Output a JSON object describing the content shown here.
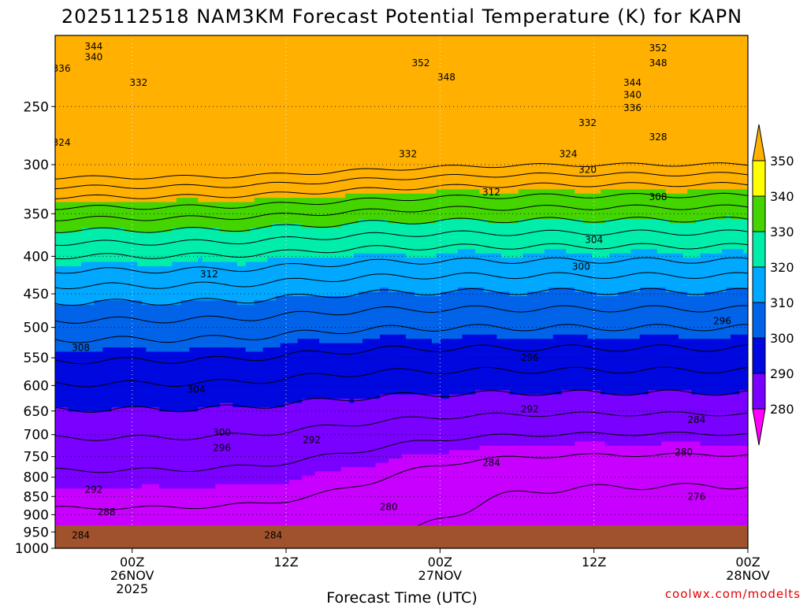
{
  "chart_data": {
    "type": "heatmap",
    "title": "2025112518 NAM3KM Forecast Potential Temperature (K) for KAPN",
    "xlabel": "Forecast Time (UTC)",
    "ylabel": "",
    "credit": "coolwx.com/modelts",
    "y_axis": {
      "scale": "log-pressure",
      "range": [
        1000,
        200
      ],
      "units": "hPa",
      "ticks": [
        "250",
        "300",
        "350",
        "400",
        "450",
        "500",
        "550",
        "600",
        "650",
        "700",
        "750",
        "800",
        "850",
        "900",
        "950",
        "1000"
      ]
    },
    "x_axis": {
      "range_hours": [
        18,
        72
      ],
      "ticks": [
        {
          "hour": 24,
          "lines": [
            "00Z",
            "26NOV",
            "2025"
          ]
        },
        {
          "hour": 36,
          "lines": [
            "12Z"
          ]
        },
        {
          "hour": 48,
          "lines": [
            "00Z",
            "27NOV"
          ]
        },
        {
          "hour": 60,
          "lines": [
            "12Z"
          ]
        },
        {
          "hour": 72,
          "lines": [
            "00Z",
            "28NOV"
          ]
        }
      ]
    },
    "colorbar": {
      "labels": [
        "350",
        "340",
        "330",
        "320",
        "310",
        "300",
        "290",
        "280"
      ],
      "levels": [
        280,
        290,
        300,
        310,
        320,
        330,
        340,
        350
      ],
      "colors": [
        "#ff00ff",
        "#c800ff",
        "#7a00ff",
        "#0008e0",
        "#0063e8",
        "#00a8ff",
        "#00eeaa",
        "#44d400",
        "#ffff00",
        "#ffb000"
      ]
    },
    "ground_color": "#a0522d",
    "contour_interval": 4,
    "contour_labels": [
      {
        "v": "344",
        "h": 21,
        "p": 207
      },
      {
        "v": "340",
        "h": 21,
        "p": 214
      },
      {
        "v": "336",
        "h": 18.5,
        "p": 222
      },
      {
        "v": "332",
        "h": 24.5,
        "p": 232
      },
      {
        "v": "324",
        "h": 18.5,
        "p": 280
      },
      {
        "v": "352",
        "h": 46.5,
        "p": 218
      },
      {
        "v": "348",
        "h": 48.5,
        "p": 228
      },
      {
        "v": "332",
        "h": 45.5,
        "p": 290
      },
      {
        "v": "312",
        "h": 52,
        "p": 327
      },
      {
        "v": "352",
        "h": 65,
        "p": 208
      },
      {
        "v": "348",
        "h": 65,
        "p": 218
      },
      {
        "v": "344",
        "h": 63,
        "p": 232
      },
      {
        "v": "340",
        "h": 63,
        "p": 241
      },
      {
        "v": "336",
        "h": 63,
        "p": 251
      },
      {
        "v": "332",
        "h": 59.5,
        "p": 263
      },
      {
        "v": "328",
        "h": 65,
        "p": 275
      },
      {
        "v": "324",
        "h": 58,
        "p": 290
      },
      {
        "v": "320",
        "h": 59.5,
        "p": 305
      },
      {
        "v": "308",
        "h": 65,
        "p": 332
      },
      {
        "v": "304",
        "h": 60,
        "p": 380
      },
      {
        "v": "300",
        "h": 59,
        "p": 413
      },
      {
        "v": "312",
        "h": 30,
        "p": 423
      },
      {
        "v": "296",
        "h": 70,
        "p": 490
      },
      {
        "v": "308",
        "h": 20,
        "p": 533
      },
      {
        "v": "296",
        "h": 55,
        "p": 550
      },
      {
        "v": "304",
        "h": 29,
        "p": 608
      },
      {
        "v": "292",
        "h": 55,
        "p": 646
      },
      {
        "v": "284",
        "h": 68,
        "p": 668
      },
      {
        "v": "300",
        "h": 31,
        "p": 695
      },
      {
        "v": "292",
        "h": 38,
        "p": 712
      },
      {
        "v": "296",
        "h": 31,
        "p": 730
      },
      {
        "v": "280",
        "h": 67,
        "p": 740
      },
      {
        "v": "284",
        "h": 52,
        "p": 765
      },
      {
        "v": "292",
        "h": 21,
        "p": 832
      },
      {
        "v": "276",
        "h": 68,
        "p": 850
      },
      {
        "v": "280",
        "h": 44,
        "p": 878
      },
      {
        "v": "288",
        "h": 22,
        "p": 893
      },
      {
        "v": "284",
        "h": 20,
        "p": 960
      },
      {
        "v": "284",
        "h": 35,
        "p": 960
      }
    ]
  }
}
